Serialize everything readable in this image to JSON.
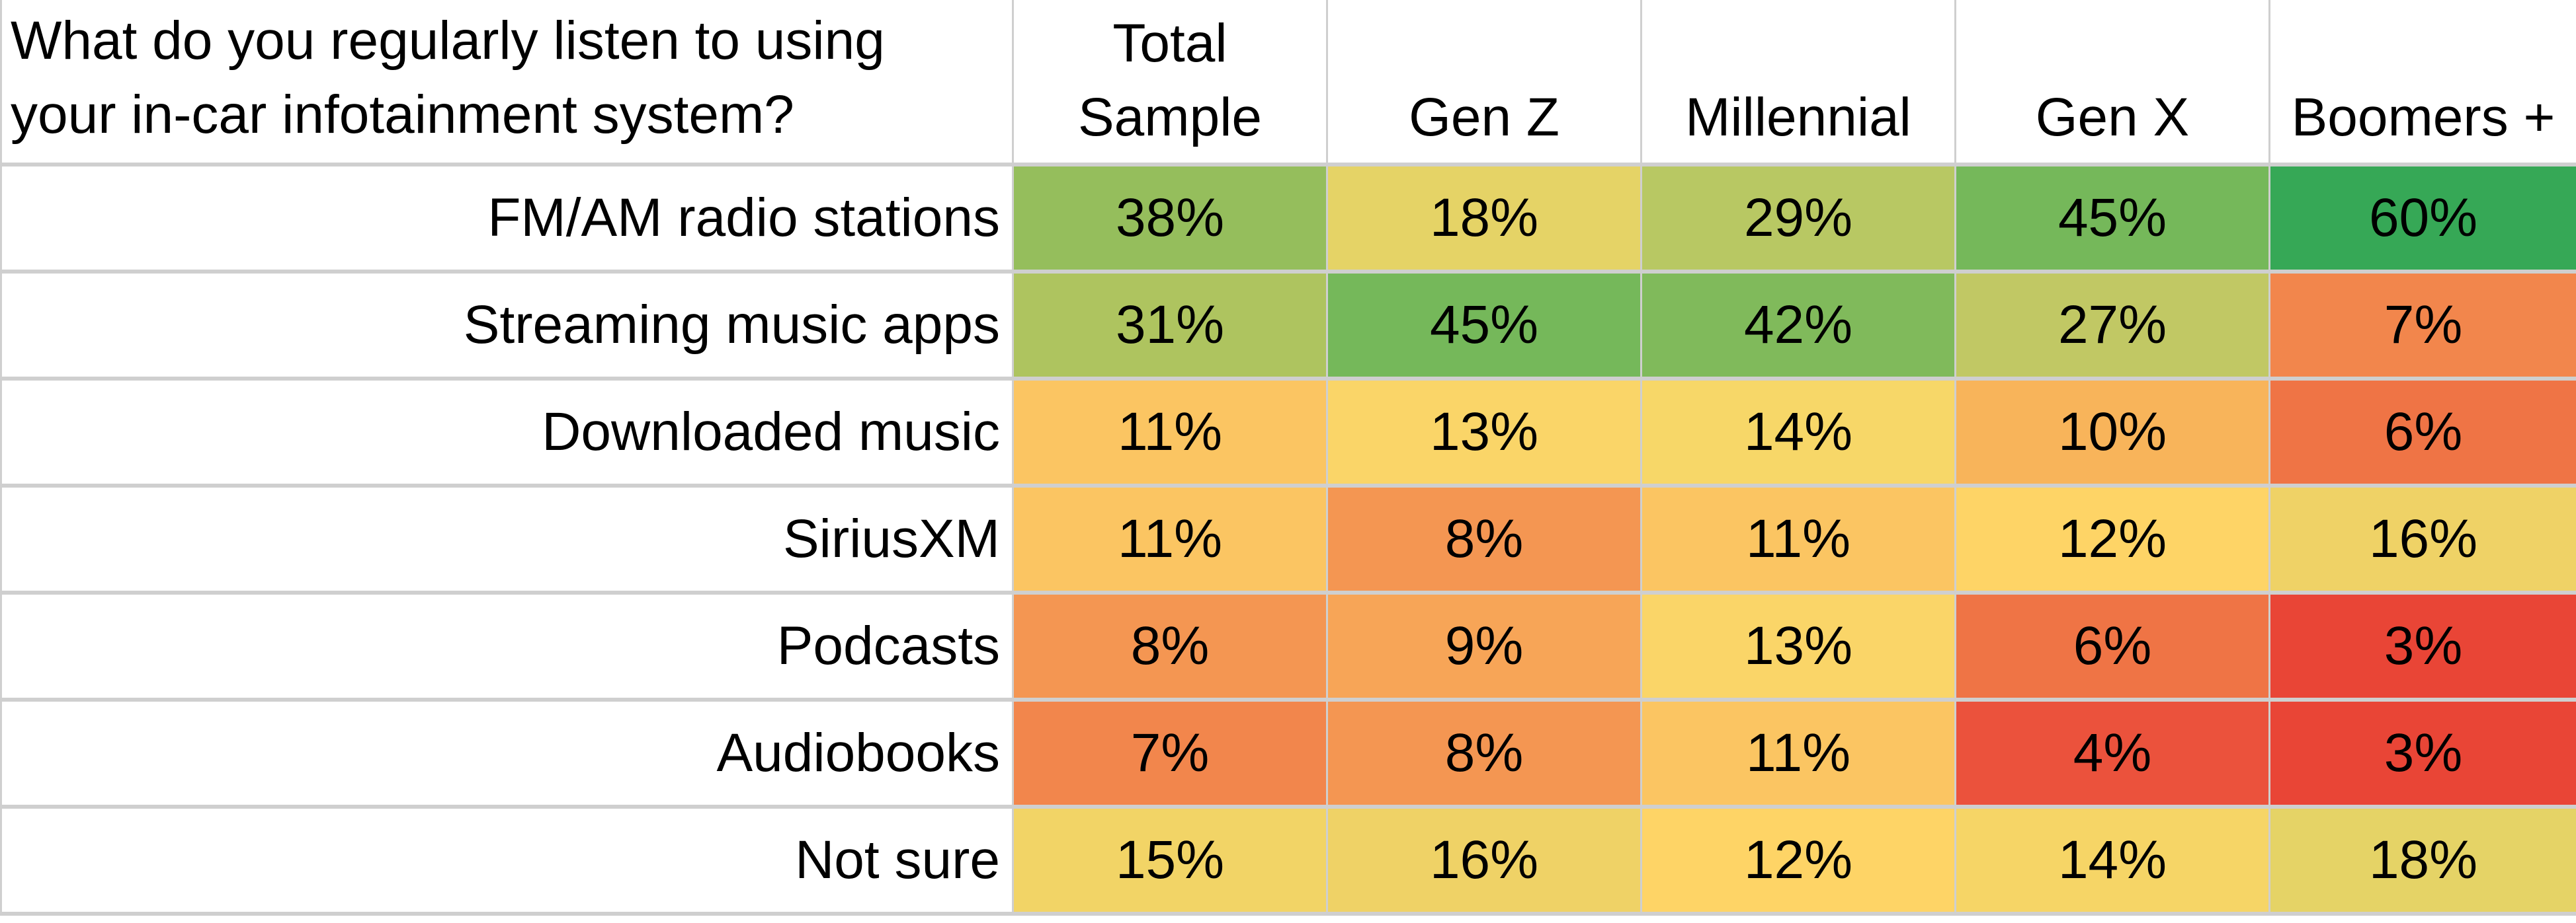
{
  "chart_data": {
    "type": "table",
    "title": "What do you regularly listen to using your in-car infotainment system?",
    "question_lines": [
      "What do you regularly listen to using",
      "your in-car infotainment system?"
    ],
    "columns": [
      {
        "lines": [
          "Total",
          "Sample"
        ]
      },
      {
        "lines": [
          "Gen Z"
        ]
      },
      {
        "lines": [
          "Millennial"
        ]
      },
      {
        "lines": [
          "Gen X"
        ]
      },
      {
        "lines": [
          "Boomers +"
        ]
      }
    ],
    "rows": [
      {
        "label": "FM/AM radio stations",
        "values": [
          38,
          18,
          29,
          45,
          60
        ],
        "display": [
          "38%",
          "18%",
          "29%",
          "45%",
          "60%"
        ],
        "colors": [
          "#95be5c",
          "#e5d366",
          "#b8c863",
          "#75b85a",
          "#36a856"
        ]
      },
      {
        "label": "Streaming music apps",
        "values": [
          31,
          45,
          42,
          27,
          7
        ],
        "display": [
          "31%",
          "45%",
          "42%",
          "27%",
          "7%"
        ],
        "colors": [
          "#aec45f",
          "#75b85a",
          "#80ba5b",
          "#c1c864",
          "#f2864c"
        ]
      },
      {
        "label": "Downloaded music",
        "values": [
          11,
          13,
          14,
          10,
          6
        ],
        "display": [
          "11%",
          "13%",
          "14%",
          "10%",
          "6%"
        ],
        "colors": [
          "#fbc562",
          "#fad568",
          "#f7d768",
          "#f8b45a",
          "#ef7445"
        ]
      },
      {
        "label": "SiriusXM",
        "values": [
          11,
          8,
          11,
          12,
          16
        ],
        "display": [
          "11%",
          "8%",
          "11%",
          "12%",
          "16%"
        ],
        "colors": [
          "#fbc562",
          "#f49652",
          "#fbc562",
          "#fed466",
          "#efd266"
        ]
      },
      {
        "label": "Podcasts",
        "values": [
          8,
          9,
          13,
          6,
          3
        ],
        "display": [
          "8%",
          "9%",
          "13%",
          "6%",
          "3%"
        ],
        "colors": [
          "#f49652",
          "#f7a557",
          "#fad568",
          "#ef7445",
          "#e94536"
        ]
      },
      {
        "label": "Audiobooks",
        "values": [
          7,
          8,
          11,
          4,
          3
        ],
        "display": [
          "7%",
          "8%",
          "11%",
          "4%",
          "3%"
        ],
        "colors": [
          "#f2864c",
          "#f49652",
          "#fbc562",
          "#eb523c",
          "#e94536"
        ]
      },
      {
        "label": "Not sure",
        "values": [
          15,
          16,
          12,
          14,
          18
        ],
        "display": [
          "15%",
          "16%",
          "12%",
          "14%",
          "18%"
        ],
        "colors": [
          "#f2d466",
          "#efd266",
          "#fed466",
          "#f6d566",
          "#e5d366"
        ]
      }
    ],
    "unit": "%",
    "color_scale": {
      "low": "#e94536",
      "mid": "#fed466",
      "high": "#36a856"
    },
    "grid": true
  }
}
